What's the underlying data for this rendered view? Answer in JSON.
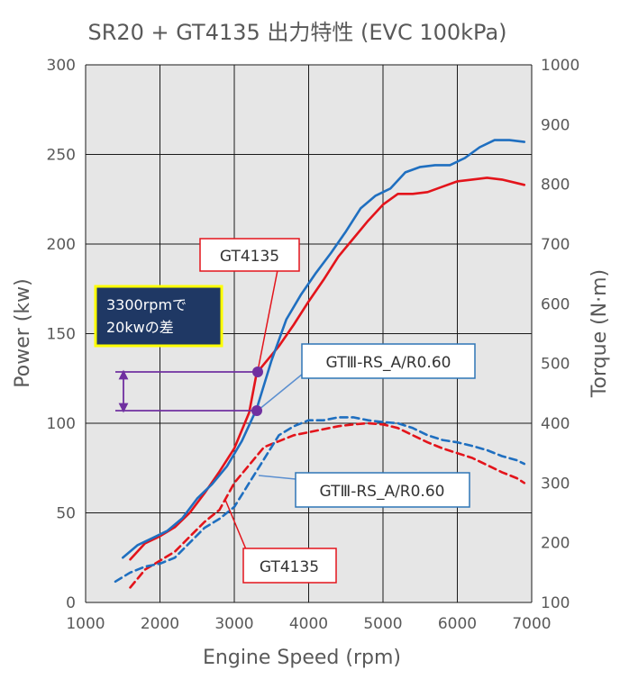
{
  "chart_data": {
    "type": "line",
    "title": "SR20 + GT4135 出力特性 (EVC 100kPa)",
    "xlabel": "Engine Speed (rpm)",
    "ylabel_left": "Power (kw)",
    "ylabel_right": "Torque (N·m)",
    "xlim": [
      1000,
      7000
    ],
    "ylim_left": [
      0,
      300
    ],
    "ylim_right": [
      100,
      1000
    ],
    "x_ticks": [
      "1000",
      "2000",
      "3000",
      "4000",
      "5000",
      "6000",
      "7000"
    ],
    "y_ticks_left": [
      "0",
      "50",
      "100",
      "150",
      "200",
      "250",
      "300"
    ],
    "y_ticks_right": [
      "100",
      "200",
      "300",
      "400",
      "500",
      "600",
      "700",
      "800",
      "900",
      "1000"
    ],
    "grid": true,
    "plot_background": "#e6e6e6",
    "series": [
      {
        "name": "GT4135",
        "quantity": "power",
        "axis": "left",
        "color": "#e3141b",
        "style": "solid",
        "x": [
          1600,
          1800,
          2000,
          2200,
          2400,
          2600,
          2800,
          3000,
          3200,
          3300,
          3400,
          3600,
          3800,
          4000,
          4200,
          4400,
          4600,
          4800,
          5000,
          5200,
          5400,
          5600,
          5800,
          6000,
          6200,
          6400,
          6600,
          6800,
          6900
        ],
        "y": [
          24,
          33,
          37,
          42,
          50,
          61,
          73,
          86,
          106,
          128,
          133,
          143,
          155,
          168,
          180,
          193,
          203,
          213,
          222,
          228,
          228,
          229,
          232,
          235,
          236,
          237,
          236,
          234,
          233
        ]
      },
      {
        "name": "GTⅢ-RS_A/R0.60",
        "quantity": "power",
        "axis": "left",
        "color": "#1f6fc0",
        "style": "solid",
        "x": [
          1500,
          1700,
          1900,
          2100,
          2300,
          2500,
          2700,
          2900,
          3100,
          3300,
          3500,
          3700,
          3900,
          4100,
          4300,
          4500,
          4700,
          4900,
          5100,
          5300,
          5500,
          5700,
          5900,
          6100,
          6300,
          6500,
          6700,
          6900
        ],
        "y": [
          25,
          32,
          36,
          40,
          47,
          58,
          66,
          76,
          90,
          108,
          135,
          158,
          172,
          184,
          195,
          207,
          220,
          227,
          231,
          240,
          243,
          244,
          244,
          248,
          254,
          258,
          258,
          257
        ]
      },
      {
        "name": "GT4135",
        "quantity": "torque",
        "axis": "right",
        "color": "#e3141b",
        "style": "dashed",
        "x": [
          1600,
          1800,
          2000,
          2200,
          2400,
          2600,
          2800,
          3000,
          3200,
          3400,
          3600,
          3800,
          4000,
          4200,
          4400,
          4600,
          4800,
          5000,
          5200,
          5400,
          5600,
          5800,
          6000,
          6200,
          6400,
          6600,
          6800,
          6900
        ],
        "y": [
          125,
          155,
          170,
          185,
          210,
          235,
          255,
          300,
          330,
          360,
          370,
          380,
          385,
          390,
          395,
          398,
          400,
          398,
          392,
          380,
          368,
          358,
          350,
          342,
          330,
          318,
          308,
          300
        ]
      },
      {
        "name": "GTⅢ-RS_A/R0.60",
        "quantity": "torque",
        "axis": "right",
        "color": "#1f6fc0",
        "style": "dashed",
        "x": [
          1400,
          1600,
          1800,
          2000,
          2200,
          2400,
          2600,
          2800,
          3000,
          3200,
          3400,
          3600,
          3800,
          4000,
          4200,
          4400,
          4600,
          4800,
          5000,
          5200,
          5400,
          5600,
          5800,
          6000,
          6200,
          6400,
          6600,
          6800,
          6900
        ],
        "y": [
          135,
          150,
          160,
          165,
          175,
          200,
          225,
          240,
          260,
          300,
          340,
          380,
          395,
          405,
          405,
          410,
          410,
          405,
          402,
          400,
          392,
          380,
          372,
          368,
          362,
          355,
          345,
          338,
          332
        ]
      }
    ],
    "markers": [
      {
        "x": 3300,
        "y": 129,
        "axis": "left",
        "color": "#7030a0"
      },
      {
        "x": 3300,
        "y": 107,
        "axis": "left",
        "color": "#7030a0"
      }
    ],
    "annotations": {
      "diff_box": {
        "line1": "3300rpmで",
        "line2": "20kwの差",
        "bg": "#1f3864",
        "border": "#ffff00",
        "text_color": "#ffffff"
      },
      "label_gt4135_power": "GT4135",
      "label_gt3rs_power": "GTⅢ-RS_A/R0.60",
      "label_gt3rs_torque": "GTⅢ-RS_A/R0.60",
      "label_gt4135_torque": "GT4135"
    }
  }
}
